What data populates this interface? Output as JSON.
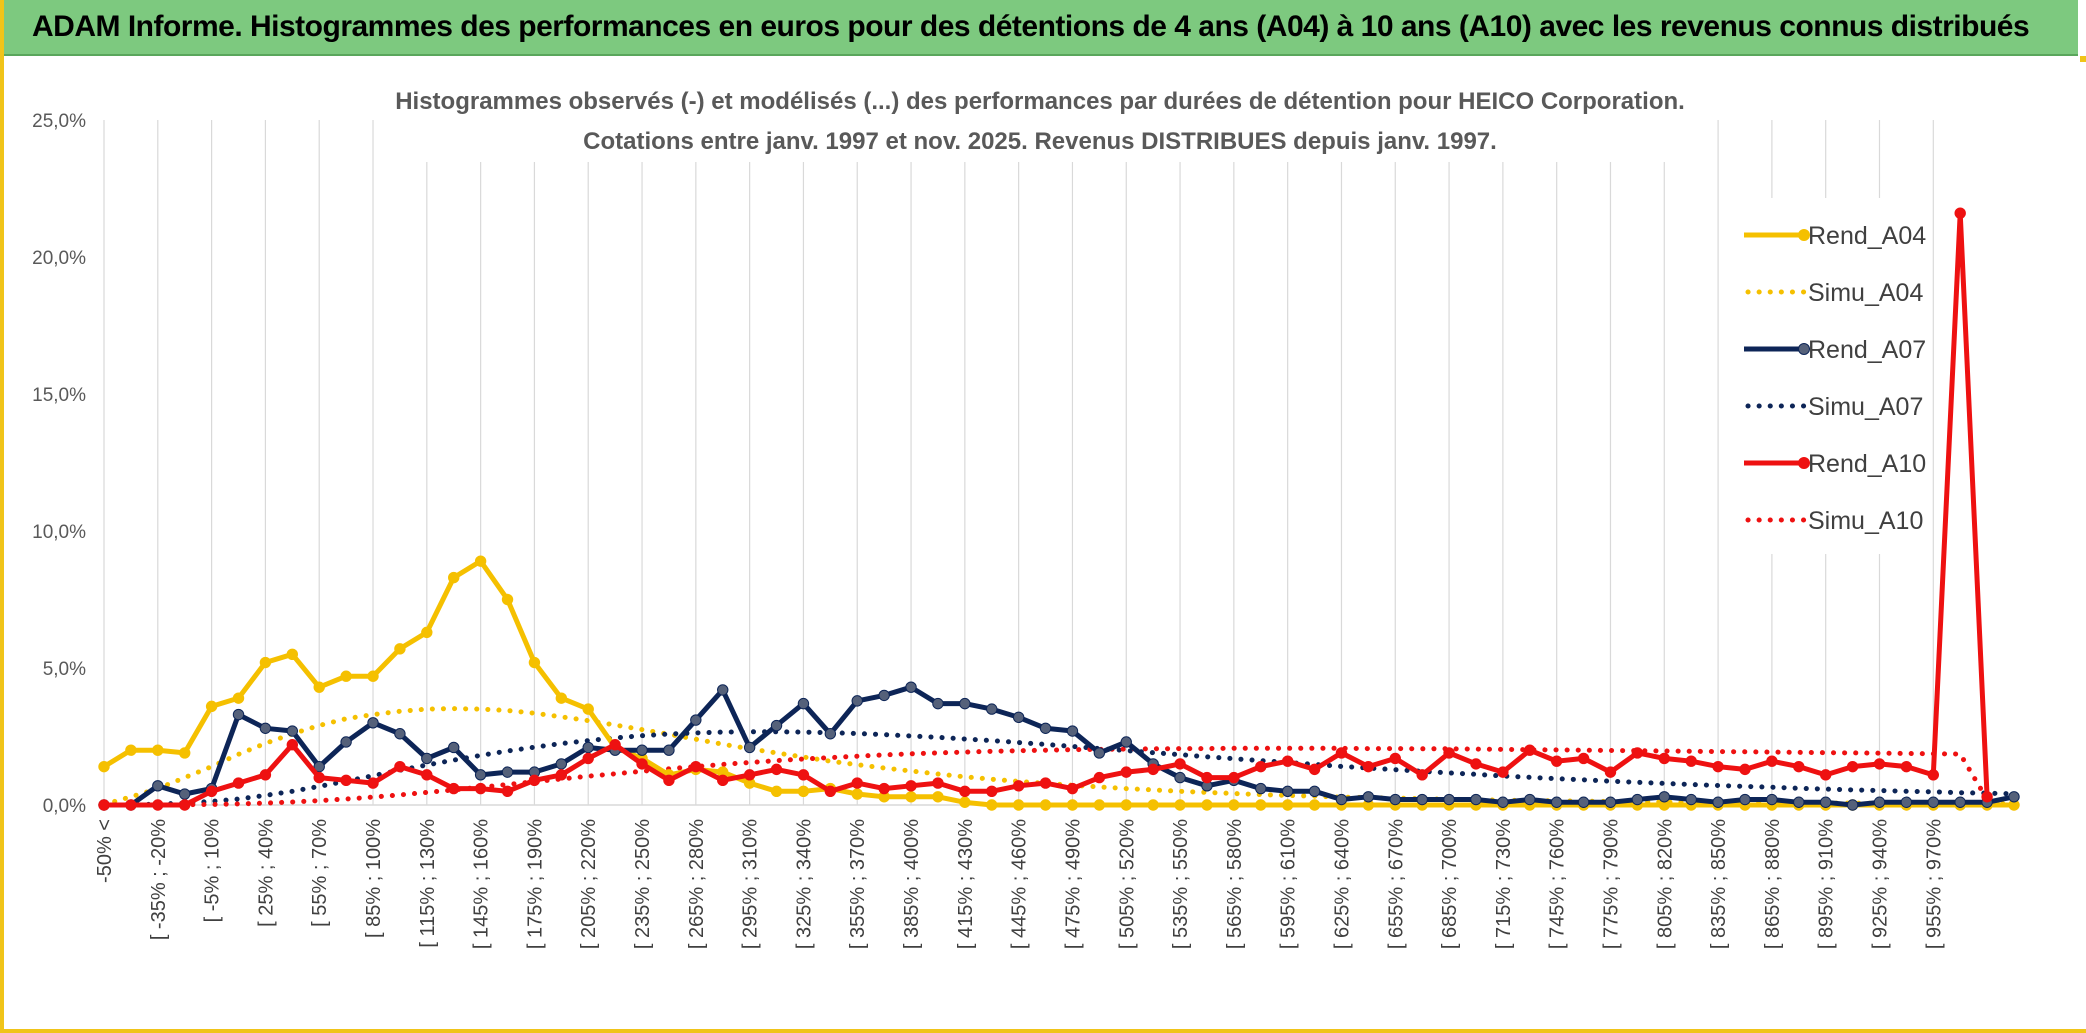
{
  "banner": {
    "title": "ADAM Informe. Histogrammes des performances en euros pour des détentions de 4 ans (A04) à 10 ans (A10) avec les revenus connus distribués"
  },
  "chart_data": {
    "type": "line",
    "title_lines": [
      "Histogrammes observés (-) et modélisés (...) des performances par durées de détention pour HEICO Corporation.",
      "Cotations entre janv. 1997 et nov. 2025. Revenus DISTRIBUES depuis janv. 1997."
    ],
    "ylim": [
      0,
      25
    ],
    "yticks": [
      "0,0%",
      "5,0%",
      "10,0%",
      "15,0%",
      "20,0%",
      "25,0%"
    ],
    "grid": "vertical",
    "legend_position": "right",
    "x_tick_labels": [
      "-50% <",
      "[ -35% ; -20%",
      "[ -5% ; 10%",
      "[ 25% ; 40%",
      "[ 55% ; 70%",
      "[ 85% ; 100%",
      "[ 115% ; 130%",
      "[ 145% ; 160%",
      "[ 175% ; 190%",
      "[ 205% ; 220%",
      "[ 235% ; 250%",
      "[ 265% ; 280%",
      "[ 295% ; 310%",
      "[ 325% ; 340%",
      "[ 355% ; 370%",
      "[ 385% ; 400%",
      "[ 415% ; 430%",
      "[ 445% ; 460%",
      "[ 475% ; 490%",
      "[ 505% ; 520%",
      "[ 535% ; 550%",
      "[ 565% ; 580%",
      "[ 595% ; 610%",
      "[ 625% ; 640%",
      "[ 655% ; 670%",
      "[ 685% ; 700%",
      "[ 715% ; 730%",
      "[ 745% ; 760%",
      "[ 775% ; 790%",
      "[ 805% ; 820%",
      "[ 835% ; 850%",
      "[ 865% ; 880%",
      "[ 895% ; 910%",
      "[ 925% ; 940%",
      "[ 955% ; 970%"
    ],
    "series": [
      {
        "name": "Rend_A04",
        "style": "solid-markers",
        "color": "#f5c000",
        "values": [
          1.4,
          2.0,
          2.0,
          1.9,
          3.6,
          3.9,
          5.2,
          5.5,
          4.3,
          4.7,
          4.7,
          5.7,
          6.3,
          8.3,
          8.9,
          7.5,
          5.2,
          3.9,
          3.5,
          2.1,
          1.7,
          1.1,
          1.3,
          1.2,
          0.8,
          0.5,
          0.5,
          0.6,
          0.4,
          0.3,
          0.3,
          0.3,
          0.1,
          0.0,
          0.0,
          0,
          0,
          0,
          0,
          0,
          0,
          0,
          0,
          0,
          0,
          0,
          0,
          0,
          0,
          0,
          0,
          0,
          0,
          0,
          0,
          0,
          0,
          0,
          0,
          0,
          0,
          0,
          0,
          0,
          0,
          0,
          0,
          0,
          0,
          0,
          0,
          0
        ]
      },
      {
        "name": "Simu_A04",
        "style": "dotted",
        "color": "#f5c000",
        "values": [
          0.02,
          0.3,
          0.6,
          1.0,
          1.4,
          1.85,
          2.25,
          2.6,
          2.9,
          3.15,
          3.3,
          3.42,
          3.5,
          3.52,
          3.5,
          3.45,
          3.35,
          3.22,
          3.08,
          2.92,
          2.75,
          2.58,
          2.4,
          2.22,
          2.05,
          1.9,
          1.75,
          1.6,
          1.47,
          1.35,
          1.24,
          1.13,
          1.03,
          0.94,
          0.86,
          0.79,
          0.72,
          0.66,
          0.6,
          0.55,
          0.5,
          0.46,
          0.42,
          0.38,
          0.35,
          0.32,
          0.29,
          0.27,
          0.25,
          0.23,
          0.21,
          0.19,
          0.18,
          0.16,
          0.15,
          0.14,
          0.13,
          0.12,
          0.11,
          0.1,
          0.09,
          0.09,
          0.08,
          0.08,
          0.07,
          0.07,
          0.06,
          0.06,
          0.05,
          0.05,
          0.05,
          0.04
        ]
      },
      {
        "name": "Rend_A07",
        "style": "solid-markers",
        "color": "#0d2557",
        "values": [
          0.0,
          0.0,
          0.7,
          0.4,
          0.6,
          3.3,
          2.8,
          2.7,
          1.4,
          2.3,
          3.0,
          2.6,
          1.7,
          2.1,
          1.1,
          1.2,
          1.2,
          1.5,
          2.1,
          2.0,
          2.0,
          2.0,
          3.1,
          4.2,
          2.1,
          2.9,
          3.7,
          2.6,
          3.8,
          4.0,
          4.3,
          3.7,
          3.7,
          3.5,
          3.2,
          2.8,
          2.7,
          1.9,
          2.3,
          1.5,
          1.0,
          0.7,
          0.9,
          0.6,
          0.5,
          0.5,
          0.2,
          0.3,
          0.2,
          0.2,
          0.2,
          0.2,
          0.1,
          0.2,
          0.1,
          0.1,
          0.1,
          0.2,
          0.3,
          0.2,
          0.1,
          0.2,
          0.2,
          0.1,
          0.1,
          0.0,
          0.1,
          0.1,
          0.1,
          0.1,
          0.1,
          0.3
        ]
      },
      {
        "name": "Simu_A07",
        "style": "dotted",
        "color": "#0d2557",
        "values": [
          0.0,
          0.01,
          0.03,
          0.07,
          0.13,
          0.22,
          0.35,
          0.5,
          0.68,
          0.87,
          1.07,
          1.27,
          1.46,
          1.64,
          1.81,
          1.97,
          2.11,
          2.24,
          2.35,
          2.45,
          2.53,
          2.59,
          2.63,
          2.66,
          2.67,
          2.67,
          2.66,
          2.64,
          2.61,
          2.57,
          2.52,
          2.47,
          2.41,
          2.35,
          2.28,
          2.21,
          2.14,
          2.06,
          1.99,
          1.91,
          1.84,
          1.76,
          1.69,
          1.62,
          1.55,
          1.48,
          1.41,
          1.35,
          1.29,
          1.23,
          1.17,
          1.12,
          1.06,
          1.01,
          0.96,
          0.92,
          0.87,
          0.83,
          0.79,
          0.75,
          0.71,
          0.68,
          0.65,
          0.61,
          0.58,
          0.55,
          0.53,
          0.5,
          0.48,
          0.45,
          0.43,
          0.41
        ]
      },
      {
        "name": "Rend_A10",
        "style": "solid-markers",
        "color": "#ee1111",
        "values": [
          0.0,
          0.0,
          0.0,
          0.0,
          0.5,
          0.8,
          1.1,
          2.2,
          1.0,
          0.9,
          0.8,
          1.4,
          1.1,
          0.6,
          0.6,
          0.5,
          0.9,
          1.1,
          1.7,
          2.2,
          1.5,
          0.9,
          1.4,
          0.9,
          1.1,
          1.3,
          1.1,
          0.5,
          0.8,
          0.6,
          0.7,
          0.8,
          0.5,
          0.5,
          0.7,
          0.8,
          0.6,
          1.0,
          1.2,
          1.3,
          1.5,
          1.0,
          1.0,
          1.4,
          1.6,
          1.3,
          1.9,
          1.4,
          1.7,
          1.1,
          1.9,
          1.5,
          1.2,
          2.0,
          1.6,
          1.7,
          1.2,
          1.9,
          1.7,
          1.6,
          1.4,
          1.3,
          1.6,
          1.4,
          1.1,
          1.4,
          1.5,
          1.4,
          1.1,
          21.6,
          0.3
        ]
      },
      {
        "name": "Simu_A10",
        "style": "dotted",
        "color": "#ee1111",
        "values": [
          0.0,
          0.0,
          0.0,
          0.01,
          0.02,
          0.04,
          0.07,
          0.11,
          0.16,
          0.22,
          0.29,
          0.37,
          0.46,
          0.55,
          0.65,
          0.75,
          0.85,
          0.95,
          1.05,
          1.14,
          1.23,
          1.32,
          1.4,
          1.48,
          1.55,
          1.62,
          1.68,
          1.73,
          1.78,
          1.83,
          1.87,
          1.9,
          1.93,
          1.96,
          1.98,
          2.0,
          2.02,
          2.03,
          2.04,
          2.05,
          2.06,
          2.06,
          2.07,
          2.07,
          2.07,
          2.07,
          2.07,
          2.06,
          2.06,
          2.05,
          2.05,
          2.04,
          2.03,
          2.02,
          2.01,
          2.0,
          1.99,
          1.98,
          1.97,
          1.96,
          1.95,
          1.94,
          1.93,
          1.92,
          1.91,
          1.9,
          1.89,
          1.88,
          1.87,
          1.86,
          0.2
        ]
      }
    ]
  }
}
